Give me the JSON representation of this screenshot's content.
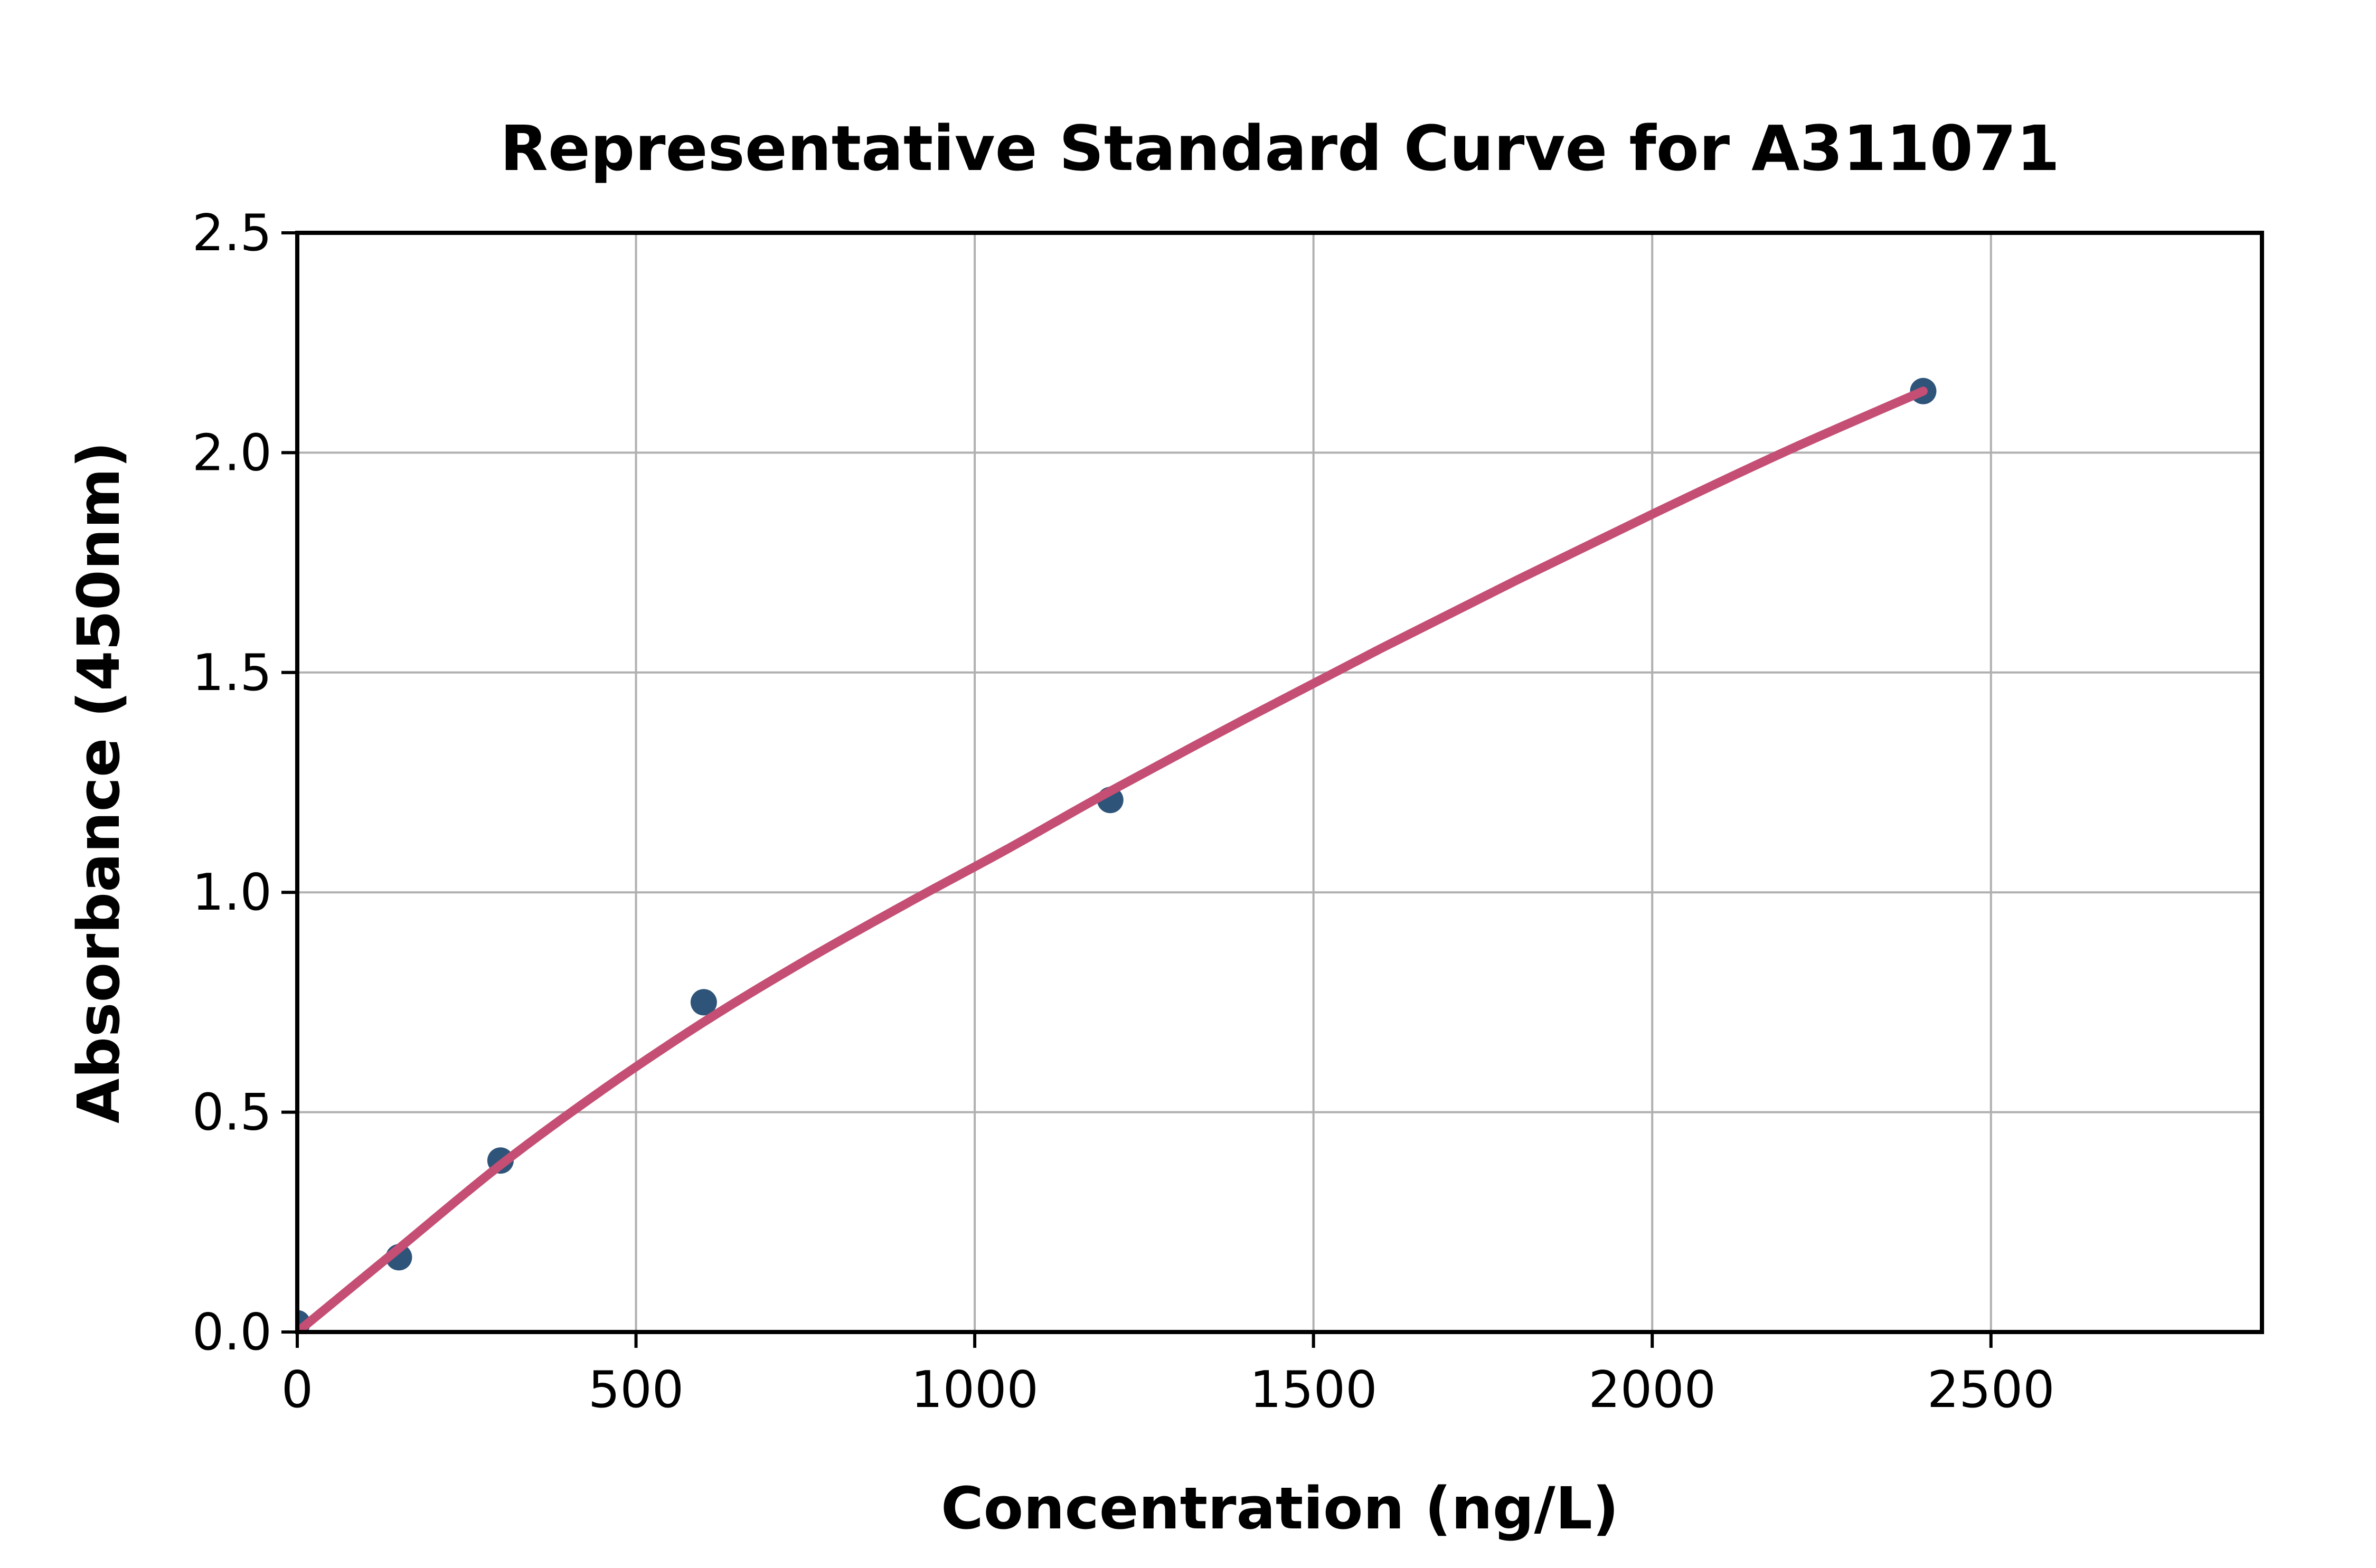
{
  "figure": {
    "background": "#ffffff"
  },
  "chart_data": {
    "type": "scatter",
    "title": "Representative Standard Curve for A311071",
    "xlabel": "Concentration (ng/L)",
    "ylabel": "Absorbance (450nm)",
    "xlim": [
      0,
      2900
    ],
    "ylim": [
      0,
      2.5
    ],
    "grid": true,
    "grid_color": "#b0b0b0",
    "axis_color": "#000000",
    "legend_position": "none",
    "x_ticks": [
      0,
      500,
      1000,
      1500,
      2000,
      2500
    ],
    "x_tick_labels": [
      "0",
      "500",
      "1000",
      "1500",
      "2000",
      "2500"
    ],
    "y_ticks": [
      0,
      0.5,
      1.0,
      1.5,
      2.0,
      2.5
    ],
    "y_tick_labels": [
      "0.0",
      "0.5",
      "1.0",
      "1.5",
      "2.0",
      "2.5"
    ],
    "series": [
      {
        "name": "standard-points",
        "type": "scatter",
        "color": "#2E5479",
        "marker_radius": 25,
        "points": [
          [
            0,
            0.02
          ],
          [
            150,
            0.17
          ],
          [
            300,
            0.39
          ],
          [
            600,
            0.75
          ],
          [
            1200,
            1.21
          ],
          [
            2400,
            2.14
          ]
        ]
      },
      {
        "name": "fitted-curve",
        "type": "line",
        "color": "#C44E74",
        "line_width": 17,
        "points": [
          [
            0,
            0.0
          ],
          [
            150,
            0.19
          ],
          [
            300,
            0.38
          ],
          [
            450,
            0.55
          ],
          [
            600,
            0.705
          ],
          [
            750,
            0.845
          ],
          [
            900,
            0.975
          ],
          [
            1050,
            1.1
          ],
          [
            1200,
            1.23
          ],
          [
            1400,
            1.395
          ],
          [
            1600,
            1.555
          ],
          [
            1800,
            1.71
          ],
          [
            2000,
            1.86
          ],
          [
            2200,
            2.005
          ],
          [
            2400,
            2.14
          ]
        ]
      }
    ]
  }
}
